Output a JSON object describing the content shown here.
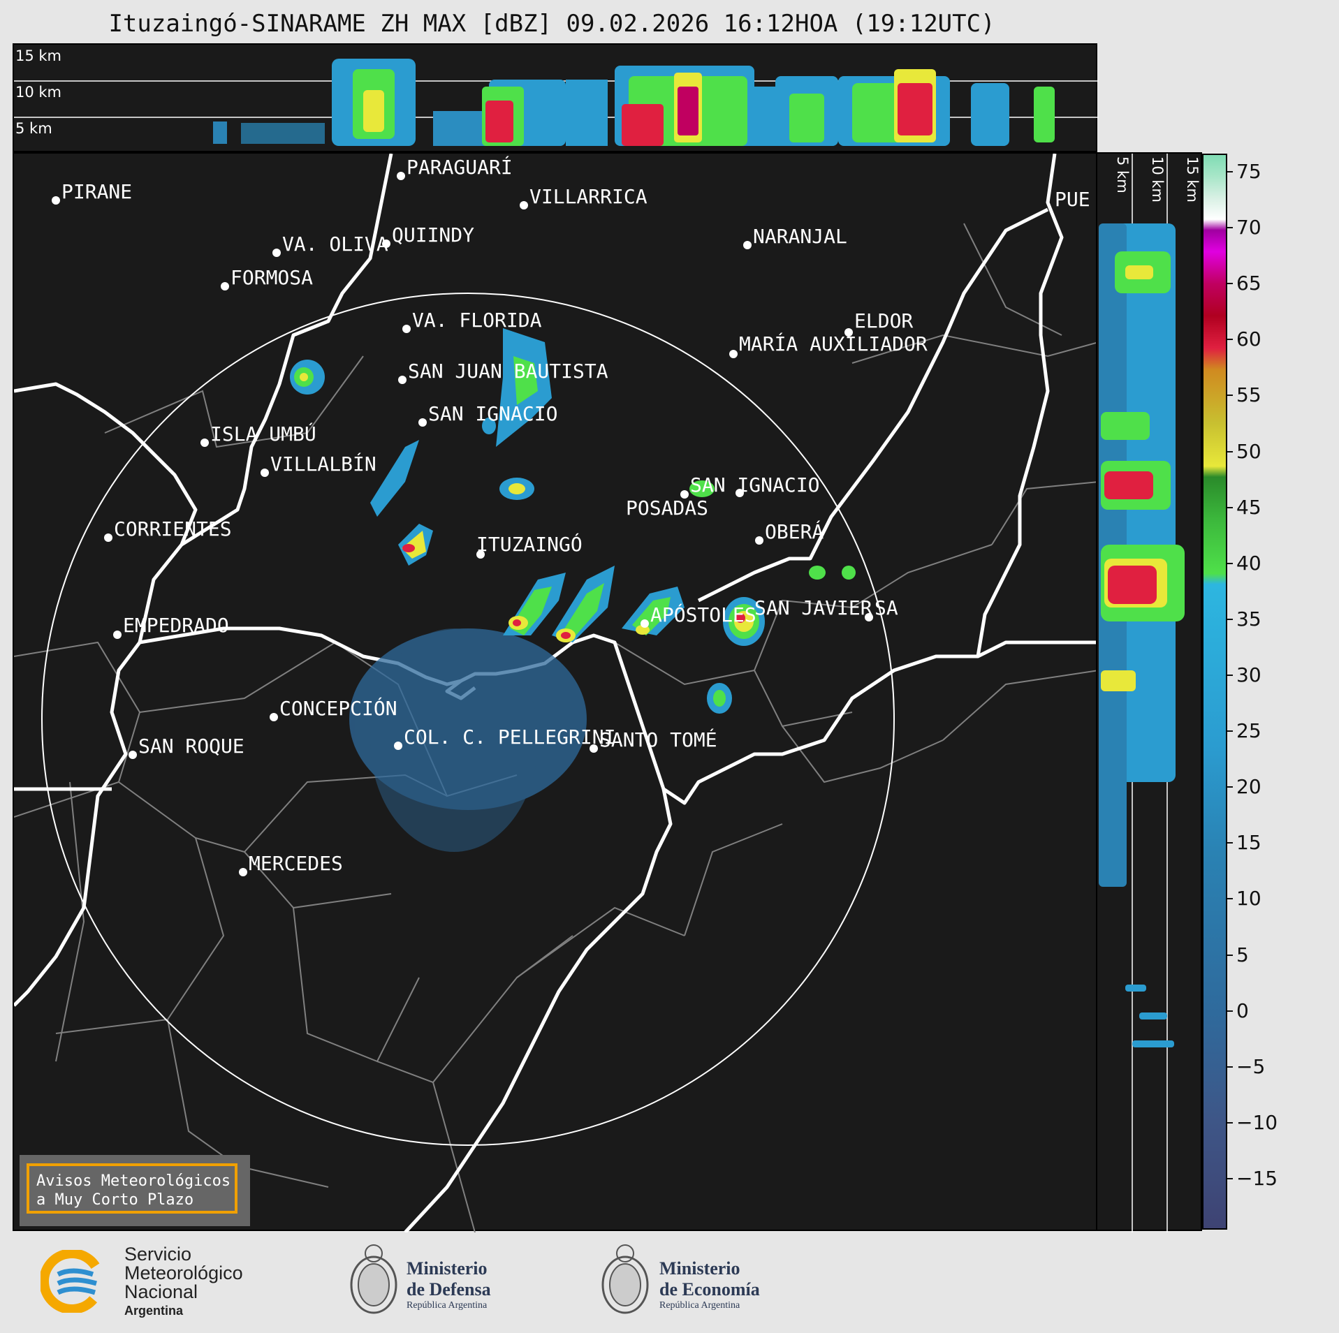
{
  "title": "Ituzaingó-SINARAME ZH MAX [dBZ] 09.02.2026 16:12HOA (19:12UTC)",
  "top_panel": {
    "altitude_labels": [
      "15 km",
      "10 km",
      "5 km"
    ]
  },
  "side_panel": {
    "altitude_labels": [
      "5 km",
      "10 km",
      "15 km"
    ]
  },
  "colorbar": {
    "ticks": [
      "75",
      "70",
      "65",
      "60",
      "55",
      "50",
      "45",
      "40",
      "35",
      "30",
      "25",
      "20",
      "15",
      "10",
      "5",
      "0",
      "−5",
      "−10",
      "−15"
    ],
    "units": "dBZ"
  },
  "cities": [
    {
      "name": "PARAGUARÍ"
    },
    {
      "name": "PIRANE"
    },
    {
      "name": "VILLARRICA"
    },
    {
      "name": "QUIINDY"
    },
    {
      "name": "VA. OLIVA"
    },
    {
      "name": "NARANJAL"
    },
    {
      "name": "FORMOSA"
    },
    {
      "name": "VA. FLORIDA"
    },
    {
      "name": "ELDOR"
    },
    {
      "name": "MARÍA AUXILIADOR"
    },
    {
      "name": "SAN JUAN BAUTISTA"
    },
    {
      "name": "SAN IGNACIO"
    },
    {
      "name": "ISLA UMBÚ"
    },
    {
      "name": "VILLALBÍN"
    },
    {
      "name": "SAN IGNACIO"
    },
    {
      "name": "POSADAS"
    },
    {
      "name": "CORRIENTES"
    },
    {
      "name": "ITUZAINGÓ"
    },
    {
      "name": "OBERÁ"
    },
    {
      "name": "APÓSTOLES"
    },
    {
      "name": "SAN JAVIER"
    },
    {
      "name": "SA"
    },
    {
      "name": "EMPEDRADO"
    },
    {
      "name": "CONCEPCIÓN"
    },
    {
      "name": "COL. C. PELLEGRINI"
    },
    {
      "name": "SANTO TOMÉ"
    },
    {
      "name": "SAN ROQUE"
    },
    {
      "name": "MERCEDES"
    },
    {
      "name": "PUE"
    }
  ],
  "avisos": {
    "line1": "Avisos Meteorológicos",
    "line2": "a Muy Corto Plazo"
  },
  "logos": {
    "smn": {
      "line1": "Servicio",
      "line2": "Meteorológico",
      "line3": "Nacional",
      "line4": "Argentina"
    },
    "defensa": {
      "line1": "Ministerio",
      "line2": "de Defensa",
      "line3": "República Argentina"
    },
    "economia": {
      "line1": "Ministerio",
      "line2": "de Economía",
      "line3": "República Argentina"
    }
  },
  "colors": {
    "background": "#1a1a1a",
    "rivers": "#ffffff",
    "borders": "#808080",
    "avisos_border": "#f0a000",
    "smn_blue": "#2e8fd0",
    "smn_orange": "#f5a800",
    "colorbar_scale": [
      "#3e4373",
      "#3e5687",
      "#2f6a9c",
      "#2a82b3",
      "#2b9cd0",
      "#2db6e0",
      "#4fe04a",
      "#3cb83c",
      "#2a8a2a",
      "#e8e83a",
      "#c8c030",
      "#d08a20",
      "#e02040",
      "#b00020",
      "#c00060",
      "#e000e0",
      "#a000a0",
      "#ffffff",
      "#d8f0e4",
      "#a8e6c8",
      "#80dcb4"
    ]
  }
}
